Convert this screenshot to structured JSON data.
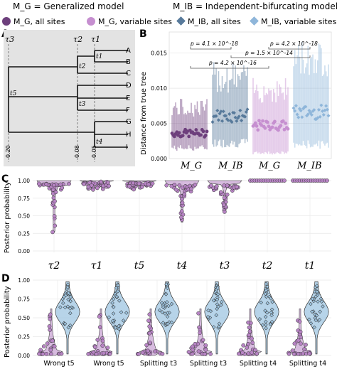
{
  "header": {
    "row1": [
      "M_G = Generalized model",
      "M_IB = Independent-bifurcating model"
    ],
    "row2": [
      "M_G, all sites",
      "M_G, variable sites",
      "M_IB, all sites",
      "M_IB, variable sites"
    ]
  },
  "colors": {
    "mg_all": "#6d3f7c",
    "mg_var": "#c68fd0",
    "mib_all": "#587a9b",
    "mib_var": "#8fb6da",
    "panel_a_bg": "#e3e3e3",
    "violin_purple": "#b784c4",
    "violin_blue": "#9fc6e2"
  },
  "panel_labels": [
    "A",
    "B",
    "C",
    "D"
  ],
  "chart_data": [
    {
      "panel": "A",
      "type": "tree",
      "tips": [
        "A",
        "B",
        "C",
        "D",
        "E",
        "F",
        "G",
        "H",
        "I"
      ],
      "internal_nodes": [
        "t1",
        "t2",
        "t3",
        "t4",
        "t5"
      ],
      "root_label": "τ3",
      "time_markers": [
        {
          "name": "τ3",
          "label": "0.20"
        },
        {
          "name": "τ2",
          "label": "0.08"
        },
        {
          "name": "τ1",
          "label": "0.05"
        }
      ]
    },
    {
      "panel": "B",
      "type": "scatter",
      "ylabel": "Distance from true tree",
      "ylim": [
        0,
        0.018
      ],
      "yticks": [
        "0.000",
        "0.005",
        "0.010",
        "0.015"
      ],
      "groups": [
        "M_G",
        "M_IB",
        "M_G",
        "M_IB"
      ],
      "series": [
        {
          "name": "M_G, all sites",
          "median": 0.0036,
          "low": 0.0015,
          "high": 0.0078
        },
        {
          "name": "M_IB, all sites",
          "median": 0.0061,
          "low": 0.0022,
          "high": 0.0125
        },
        {
          "name": "M_G, variable sites",
          "median": 0.0047,
          "low": 0.0008,
          "high": 0.0105
        },
        {
          "name": "M_IB, variable sites",
          "median": 0.0066,
          "low": 0.002,
          "high": 0.0155
        }
      ],
      "pvalues": [
        {
          "text": "p = 4.1 × 10^-18",
          "pair": [
            0,
            1
          ]
        },
        {
          "text": "p = 4.2 × 10^-18",
          "pair": [
            2,
            3
          ]
        },
        {
          "text": "p = 1.5 × 10^-14",
          "pair": [
            1,
            3
          ]
        },
        {
          "text": "p = 4.2 × 10^-16",
          "pair": [
            0,
            2
          ]
        }
      ]
    },
    {
      "panel": "C",
      "type": "violin",
      "ylabel": "Posterior probability",
      "ylim": [
        0,
        1.0
      ],
      "yticks": [
        "0.00",
        "0.25",
        "0.50",
        "0.75",
        "1.00"
      ],
      "categories": [
        "τ2",
        "τ1",
        "t5",
        "t4",
        "t3",
        "t2",
        "t1"
      ],
      "medians": [
        0.95,
        0.97,
        0.96,
        0.93,
        0.92,
        1.0,
        1.0
      ],
      "mins": [
        0.28,
        0.88,
        0.88,
        0.41,
        0.55,
        0.995,
        0.995
      ]
    },
    {
      "panel": "D",
      "type": "violin",
      "ylabel": "Posterior probability",
      "ylim": [
        0,
        1.0
      ],
      "yticks": [
        "0.00",
        "0.25",
        "0.50",
        "0.75",
        "1.00"
      ],
      "categories": [
        "Wrong t5",
        "Wrong t5",
        "Splitting t3",
        "Splitting t3",
        "Splitting t4",
        "Splitting t4"
      ]
    }
  ]
}
